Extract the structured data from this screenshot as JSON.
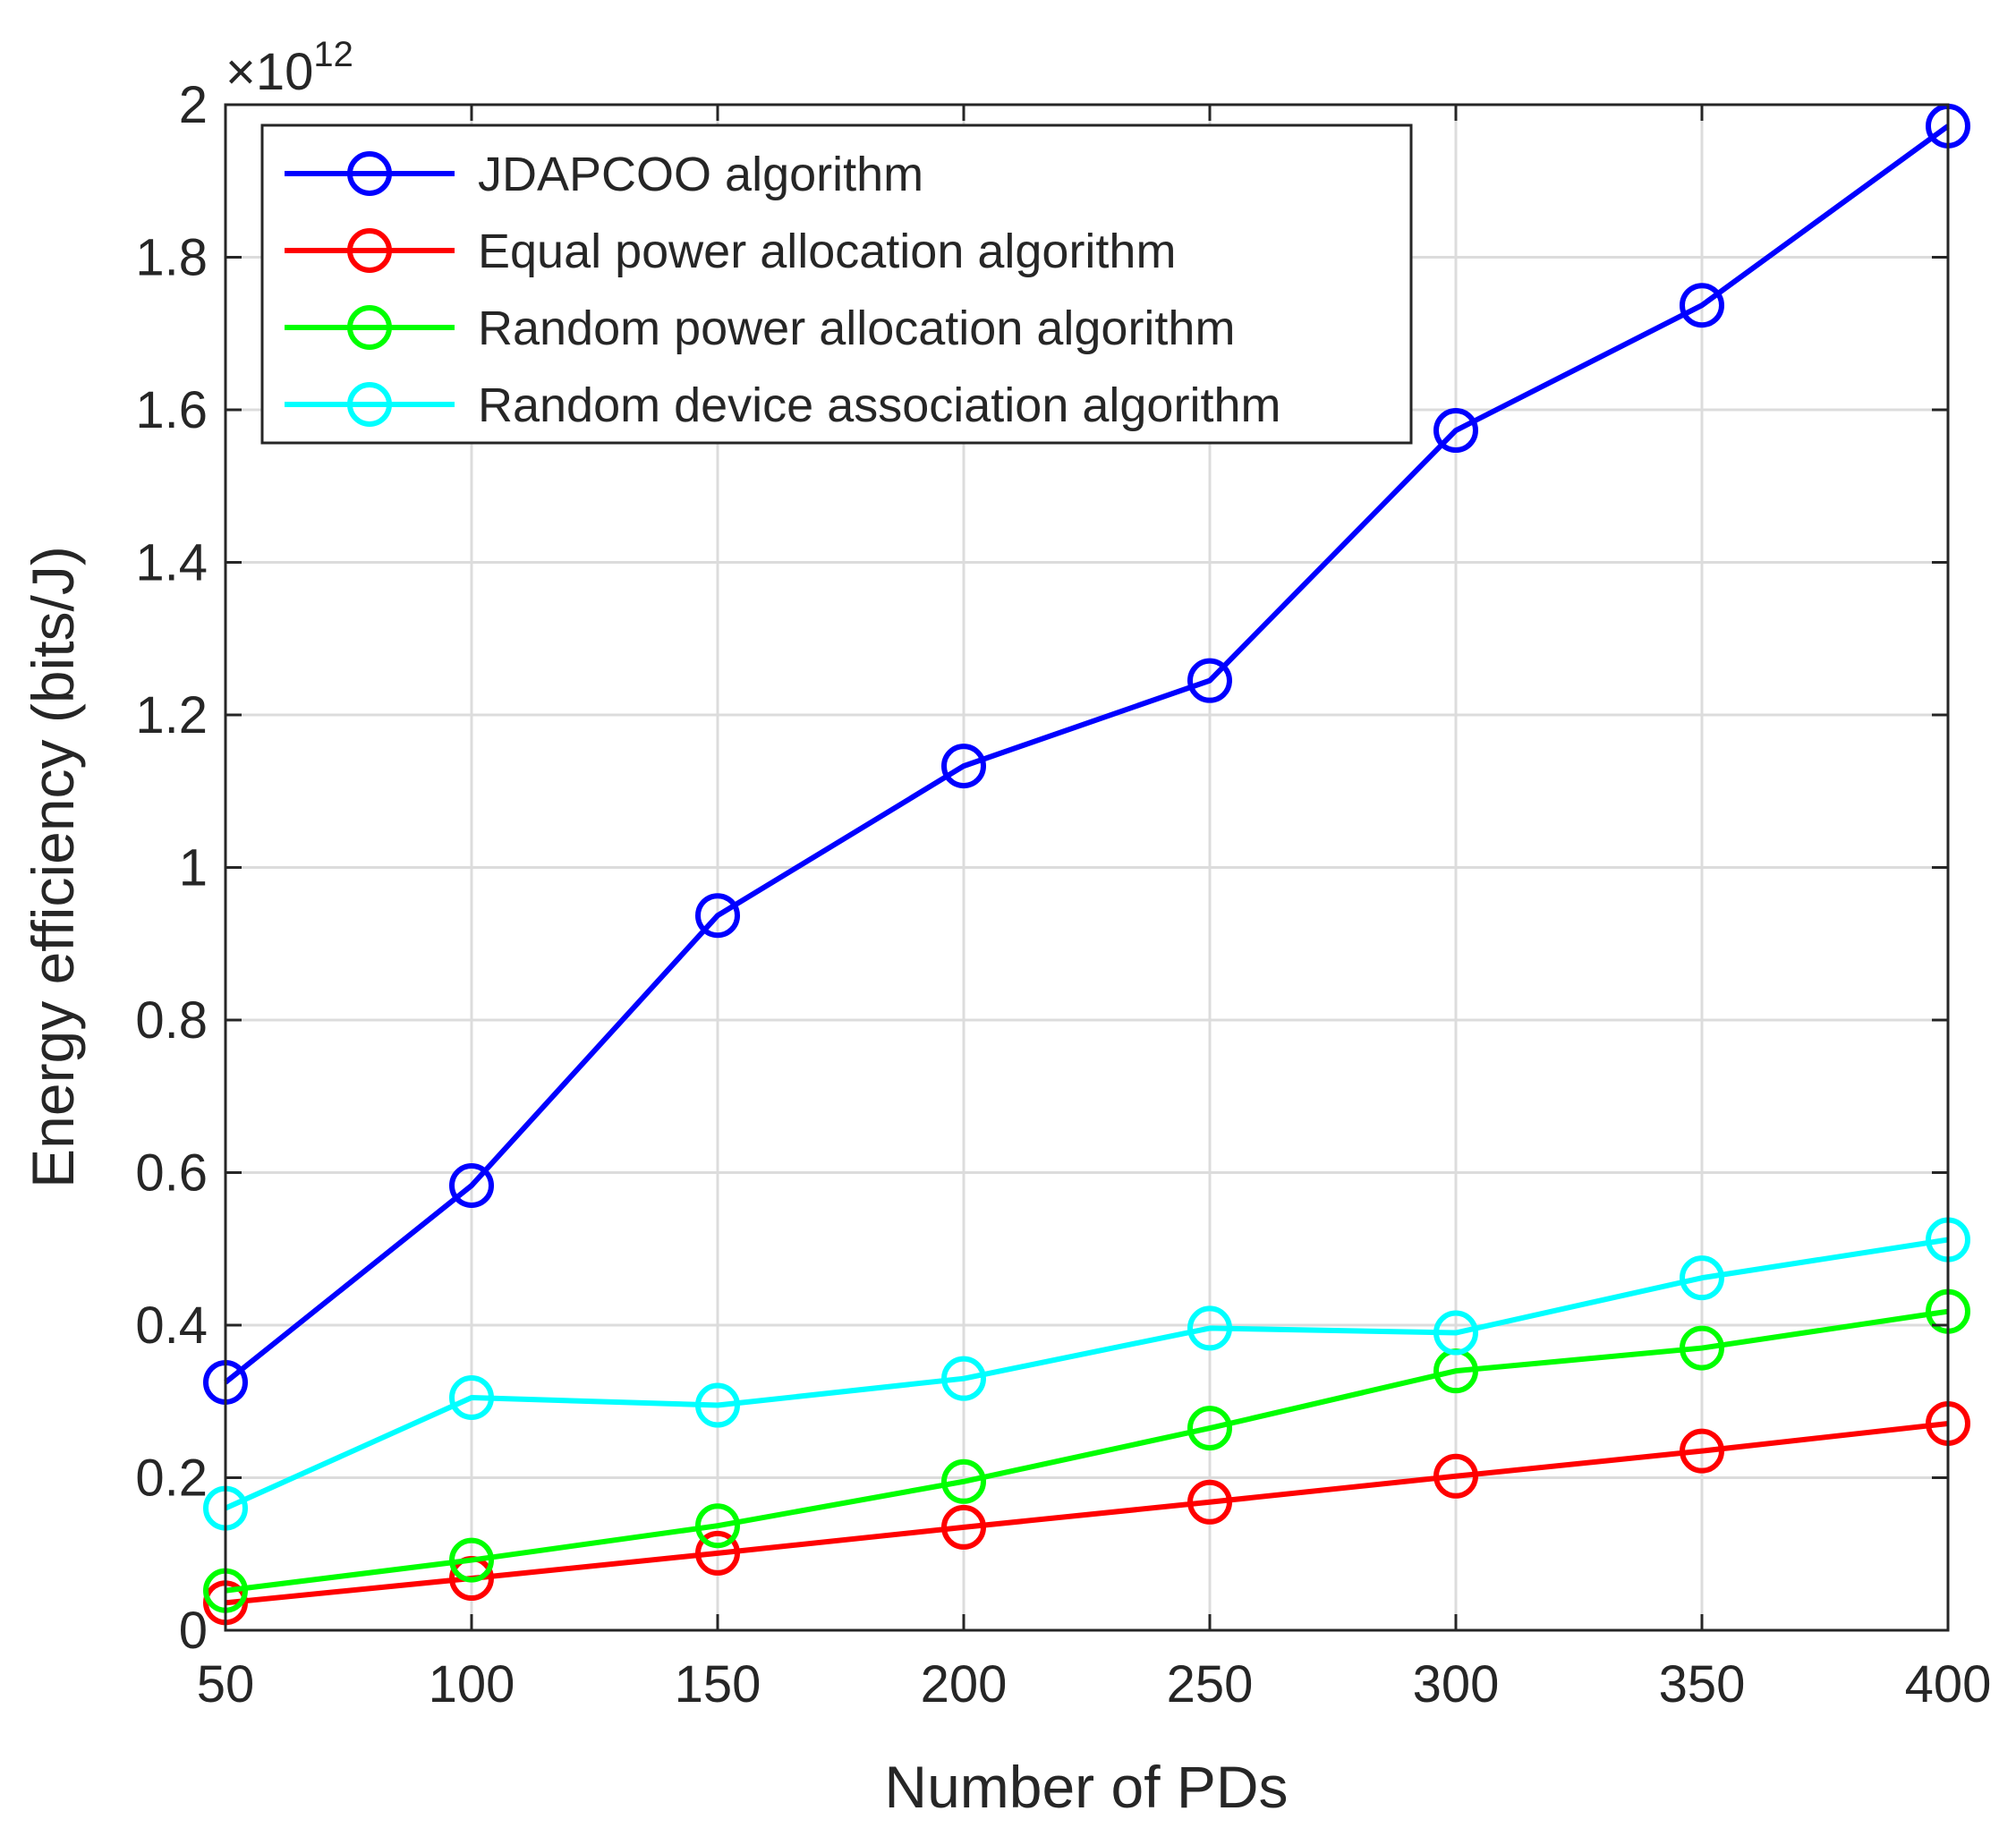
{
  "chart_data": {
    "type": "line",
    "title": "",
    "xlabel": "Number of PDs",
    "ylabel": "Energy efficiency (bits/J)",
    "y_exponent_prefix": "×10",
    "y_exponent": "12",
    "x": [
      50,
      100,
      150,
      200,
      250,
      300,
      350,
      400
    ],
    "xlim": [
      50,
      400
    ],
    "ylim": [
      0,
      2
    ],
    "x_ticks": [
      50,
      100,
      150,
      200,
      250,
      300,
      350,
      400
    ],
    "x_tick_labels": [
      "50",
      "100",
      "150",
      "200",
      "250",
      "300",
      "350",
      "400"
    ],
    "y_ticks": [
      0,
      0.2,
      0.4,
      0.6,
      0.8,
      1,
      1.2,
      1.4,
      1.6,
      1.8,
      2
    ],
    "y_tick_labels": [
      "0",
      "0.2",
      "0.4",
      "0.6",
      "0.8",
      "1",
      "1.2",
      "1.4",
      "1.6",
      "1.8",
      "2"
    ],
    "grid": true,
    "legend_position": "top-left",
    "marker": "circle",
    "series": [
      {
        "name": "JDAPCOO  algorithm",
        "color": "#0000ff",
        "values": [
          0.325,
          0.583,
          0.937,
          1.133,
          1.245,
          1.573,
          1.737,
          1.972
        ]
      },
      {
        "name": "Equal power allocation algorithm",
        "color": "#ff0000",
        "values": [
          0.036,
          0.068,
          0.101,
          0.135,
          0.168,
          0.202,
          0.235,
          0.271
        ]
      },
      {
        "name": "Random power allocation algorithm",
        "color": "#00ff00",
        "values": [
          0.052,
          0.092,
          0.137,
          0.195,
          0.265,
          0.34,
          0.37,
          0.418
        ]
      },
      {
        "name": "Random device association algorithm",
        "color": "#00ffff",
        "values": [
          0.16,
          0.305,
          0.295,
          0.33,
          0.396,
          0.39,
          0.462,
          0.512
        ]
      }
    ]
  }
}
